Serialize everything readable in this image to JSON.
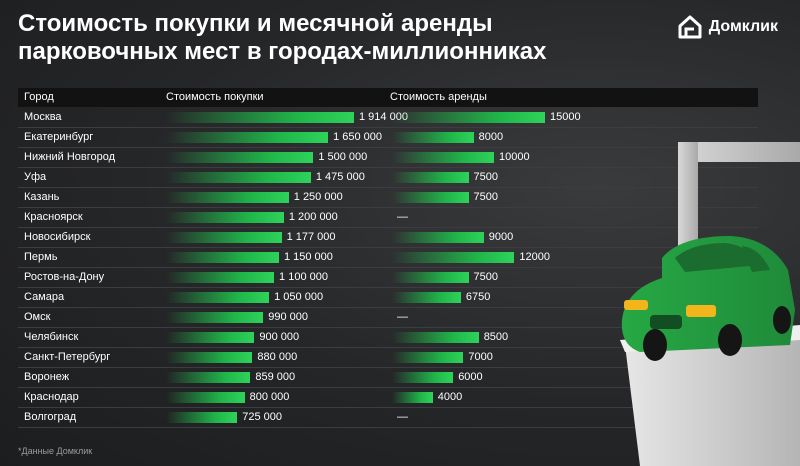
{
  "title_line1": "Стоимость покупки и месячной аренды",
  "title_line2": "парковочных мест в городах-миллионниках",
  "brand": {
    "name": "Домклик",
    "icon": "house-logo-icon"
  },
  "headers": {
    "city": "Город",
    "buy": "Стоимость покупки",
    "rent": "Стоимость аренды"
  },
  "rows": [
    {
      "city": "Москва",
      "buy": "1 914 000",
      "rent": "15000"
    },
    {
      "city": "Екатеринбург",
      "buy": "1 650 000",
      "rent": "8000"
    },
    {
      "city": "Нижний Новгород",
      "buy": "1 500 000",
      "rent": "10000"
    },
    {
      "city": "Уфа",
      "buy": "1 475 000",
      "rent": "7500"
    },
    {
      "city": "Казань",
      "buy": "1 250 000",
      "rent": "7500"
    },
    {
      "city": "Красноярск",
      "buy": "1 200 000",
      "rent": "—"
    },
    {
      "city": "Новосибирск",
      "buy": "1 177 000",
      "rent": "9000"
    },
    {
      "city": "Пермь",
      "buy": "1 150 000",
      "rent": "12000"
    },
    {
      "city": "Ростов-на-Дону",
      "buy": "1 100 000",
      "rent": "7500"
    },
    {
      "city": "Самара",
      "buy": "1 050 000",
      "rent": "6750"
    },
    {
      "city": "Омск",
      "buy": "990 000",
      "rent": "—"
    },
    {
      "city": "Челябинск",
      "buy": "900 000",
      "rent": "8500"
    },
    {
      "city": "Санкт-Петербург",
      "buy": "880 000",
      "rent": "7000"
    },
    {
      "city": "Воронеж",
      "buy": "859 000",
      "rent": "6000"
    },
    {
      "city": "Краснодар",
      "buy": "800 000",
      "rent": "4000"
    },
    {
      "city": "Волгоград",
      "buy": "725 000",
      "rent": "—"
    }
  ],
  "footnote": "*Данные Домклик",
  "colors": {
    "bar": "#20b54a",
    "background": "#252628",
    "header": "#121213"
  },
  "chart_data": {
    "type": "bar",
    "categories": [
      "Москва",
      "Екатеринбург",
      "Нижний Новгород",
      "Уфа",
      "Казань",
      "Красноярск",
      "Новосибирск",
      "Пермь",
      "Ростов-на-Дону",
      "Самара",
      "Омск",
      "Челябинск",
      "Санкт-Петербург",
      "Воронеж",
      "Краснодар",
      "Волгоград"
    ],
    "series": [
      {
        "name": "Стоимость покупки",
        "values": [
          1914000,
          1650000,
          1500000,
          1475000,
          1250000,
          1200000,
          1177000,
          1150000,
          1100000,
          1050000,
          990000,
          900000,
          880000,
          859000,
          800000,
          725000
        ]
      },
      {
        "name": "Стоимость аренды",
        "values": [
          15000,
          8000,
          10000,
          7500,
          7500,
          null,
          9000,
          12000,
          7500,
          6750,
          null,
          8500,
          7000,
          6000,
          4000,
          null
        ]
      }
    ]
  }
}
